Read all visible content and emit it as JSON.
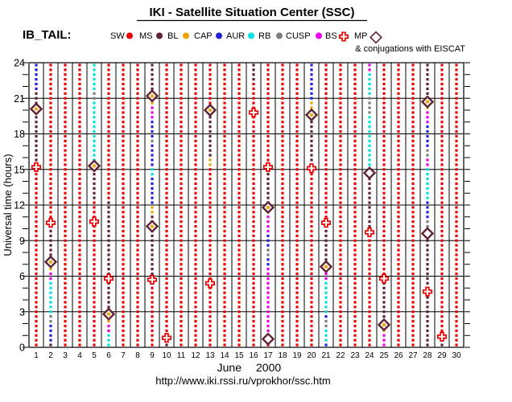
{
  "title": "IKI - Satellite Situation Center (SSC)",
  "dataset_label": "IB_TAIL:",
  "legend": {
    "note": "& conjugations with EISCAT",
    "items": [
      {
        "label": "SW",
        "marker": "dot",
        "color": "#ee0000"
      },
      {
        "label": "MS",
        "marker": "dot",
        "color": "#5f2230"
      },
      {
        "label": "BL",
        "marker": "dot",
        "color": "#f2a200"
      },
      {
        "label": "CAP",
        "marker": "dot",
        "color": "#2222dd"
      },
      {
        "label": "AUR",
        "marker": "dot",
        "color": "#00e2e2"
      },
      {
        "label": "RB",
        "marker": "dot",
        "color": "#7d7d7d"
      },
      {
        "label": "CUSP",
        "marker": "dot",
        "color": "#ee00ee"
      },
      {
        "label": "BS",
        "marker": "cross",
        "color": "#ee0000"
      },
      {
        "label": "MP",
        "marker": "diamond",
        "color": "#5f2230"
      }
    ]
  },
  "footer": {
    "url": "http://www.iki.rssi.ru/vprokhor/ssc.htm"
  },
  "chart_data": {
    "type": "scatter",
    "title": "IKI - Satellite Situation Center (SSC)",
    "ylabel": "Universal time (hours)",
    "xlabel": {
      "month": "June",
      "year": "2000"
    },
    "ylim": [
      0,
      24
    ],
    "ytick_step": 3,
    "minor_tick_hours": 1,
    "x_days": 30,
    "grid": true,
    "colors": {
      "SW": "#ee0000",
      "MS": "#5f2230",
      "BL": "#f2a200",
      "CAP": "#2222dd",
      "AUR": "#00e2e2",
      "RB": "#7d7d7d",
      "CUSP": "#ee00ee",
      "BS": "#ee0000",
      "MP": "#5f2230"
    },
    "days": [
      {
        "day": 1,
        "segments": [
          [
            "CAP",
            24,
            21.7
          ],
          [
            "MS",
            21.7,
            15.3
          ],
          [
            "SW",
            15.3,
            0
          ]
        ]
      },
      {
        "day": 2,
        "segments": [
          [
            "SW",
            24,
            10.5
          ],
          [
            "MS",
            10.5,
            7.1
          ],
          [
            "BL",
            7.1,
            6.5
          ],
          [
            "CUSP",
            6.5,
            5.7
          ],
          [
            "AUR",
            5.7,
            3.0
          ],
          [
            "RB",
            3.0,
            2.1
          ],
          [
            "CAP",
            2.1,
            0.2
          ],
          [
            "MS",
            0.2,
            0
          ]
        ]
      },
      {
        "day": 3,
        "segments": [
          [
            "SW",
            24,
            0
          ]
        ]
      },
      {
        "day": 4,
        "segments": [
          [
            "SW",
            24,
            0
          ]
        ]
      },
      {
        "day": 5,
        "segments": [
          [
            "AUR",
            24,
            21.6
          ],
          [
            "RB",
            21.6,
            20.8
          ],
          [
            "AUR",
            20.8,
            15.4
          ],
          [
            "MS",
            15.4,
            12.4
          ],
          [
            "SW",
            12.4,
            0
          ]
        ]
      },
      {
        "day": 6,
        "segments": [
          [
            "SW",
            24,
            12.5
          ],
          [
            "MS",
            12.5,
            2.9
          ],
          [
            "BL",
            2.9,
            2.1
          ],
          [
            "CUSP",
            2.1,
            1.1
          ],
          [
            "AUR",
            1.1,
            0
          ]
        ]
      },
      {
        "day": 7,
        "segments": [
          [
            "SW",
            24,
            0
          ]
        ]
      },
      {
        "day": 8,
        "segments": [
          [
            "SW",
            24,
            0
          ]
        ]
      },
      {
        "day": 9,
        "segments": [
          [
            "MS",
            24,
            21.3
          ],
          [
            "BL",
            21.3,
            20.5
          ],
          [
            "CUSP",
            20.5,
            19.3
          ],
          [
            "CAP",
            19.3,
            17.6
          ],
          [
            "RB",
            17.6,
            17.0
          ],
          [
            "CAP",
            17.0,
            15.3
          ],
          [
            "AUR",
            15.3,
            14.4
          ],
          [
            "CAP",
            14.4,
            11.8
          ],
          [
            "BL",
            11.8,
            11.2
          ],
          [
            "MS",
            11.2,
            5.8
          ],
          [
            "SW",
            5.8,
            0
          ]
        ]
      },
      {
        "day": 10,
        "segments": [
          [
            "SW",
            24,
            1.1
          ],
          [
            "MS",
            1.1,
            0
          ]
        ]
      },
      {
        "day": 11,
        "segments": [
          [
            "SW",
            24,
            0
          ]
        ]
      },
      {
        "day": 12,
        "segments": [
          [
            "SW",
            24,
            0
          ]
        ]
      },
      {
        "day": 13,
        "segments": [
          [
            "SW",
            24,
            20.1
          ],
          [
            "MS",
            20.1,
            15.9
          ],
          [
            "BL",
            15.9,
            15.2
          ],
          [
            "SW",
            15.2,
            0
          ]
        ]
      },
      {
        "day": 14,
        "segments": [
          [
            "SW",
            24,
            0
          ]
        ]
      },
      {
        "day": 15,
        "segments": [
          [
            "SW",
            24,
            0
          ]
        ]
      },
      {
        "day": 16,
        "segments": [
          [
            "MS",
            24,
            22.3
          ],
          [
            "SW",
            22.3,
            0
          ]
        ]
      },
      {
        "day": 17,
        "segments": [
          [
            "SW",
            24,
            15.3
          ],
          [
            "MS",
            15.3,
            11.9
          ],
          [
            "BL",
            11.9,
            11.2
          ],
          [
            "CUSP",
            11.2,
            9.7
          ],
          [
            "CAP",
            9.7,
            8.2
          ],
          [
            "RB",
            8.2,
            7.6
          ],
          [
            "CAP",
            7.6,
            6.7
          ],
          [
            "CUSP",
            6.7,
            0.9
          ],
          [
            "SW",
            0.9,
            0
          ]
        ]
      },
      {
        "day": 18,
        "segments": [
          [
            "SW",
            24,
            0
          ]
        ]
      },
      {
        "day": 19,
        "segments": [
          [
            "SW",
            24,
            0
          ]
        ]
      },
      {
        "day": 20,
        "segments": [
          [
            "CAP",
            24,
            20.7
          ],
          [
            "BL",
            20.7,
            19.8
          ],
          [
            "MS",
            19.8,
            15.2
          ],
          [
            "SW",
            15.2,
            0
          ]
        ]
      },
      {
        "day": 21,
        "segments": [
          [
            "SW",
            24,
            10.6
          ],
          [
            "MS",
            10.6,
            6.9
          ],
          [
            "BL",
            6.9,
            6.2
          ],
          [
            "CUSP",
            6.2,
            5.4
          ],
          [
            "AUR",
            5.4,
            2.9
          ],
          [
            "CAP",
            2.9,
            2.5
          ],
          [
            "RB",
            2.5,
            1.7
          ],
          [
            "AUR",
            1.7,
            0.5
          ],
          [
            "CAP",
            0.5,
            0
          ]
        ]
      },
      {
        "day": 22,
        "segments": [
          [
            "SW",
            24,
            0
          ]
        ]
      },
      {
        "day": 23,
        "segments": [
          [
            "SW",
            24,
            0
          ]
        ]
      },
      {
        "day": 24,
        "segments": [
          [
            "CUSP",
            24,
            23.2
          ],
          [
            "AUR",
            23.2,
            21.3
          ],
          [
            "RB",
            21.3,
            19.6
          ],
          [
            "AUR",
            19.6,
            15.0
          ],
          [
            "MS",
            15.0,
            9.8
          ],
          [
            "SW",
            9.8,
            0
          ]
        ]
      },
      {
        "day": 25,
        "segments": [
          [
            "SW",
            24,
            5.9
          ],
          [
            "MS",
            5.9,
            2.0
          ],
          [
            "BL",
            2.0,
            1.3
          ],
          [
            "CUSP",
            1.3,
            0
          ]
        ]
      },
      {
        "day": 26,
        "segments": [
          [
            "SW",
            24,
            0
          ]
        ]
      },
      {
        "day": 27,
        "segments": [
          [
            "SW",
            24,
            0
          ]
        ]
      },
      {
        "day": 28,
        "segments": [
          [
            "MS",
            24,
            20.9
          ],
          [
            "BL",
            20.9,
            20.0
          ],
          [
            "CUSP",
            20.0,
            18.7
          ],
          [
            "CAP",
            18.7,
            16.8
          ],
          [
            "RB",
            16.8,
            16.0
          ],
          [
            "CUSP",
            16.0,
            15.2
          ],
          [
            "AUR",
            15.2,
            12.2
          ],
          [
            "CAP",
            12.2,
            10.7
          ],
          [
            "RB",
            10.7,
            10.1
          ],
          [
            "MS",
            10.1,
            0
          ]
        ]
      },
      {
        "day": 29,
        "segments": [
          [
            "SW",
            24,
            0.4
          ],
          [
            "MS",
            0.4,
            0
          ]
        ]
      },
      {
        "day": 30,
        "segments": [
          [
            "SW",
            24,
            0
          ]
        ]
      }
    ],
    "markers": [
      {
        "day": 1,
        "hour": 20.1,
        "type": "MP",
        "center": "BL"
      },
      {
        "day": 1,
        "hour": 15.2,
        "type": "BS"
      },
      {
        "day": 2,
        "hour": 10.5,
        "type": "BS"
      },
      {
        "day": 2,
        "hour": 7.2,
        "type": "MP",
        "center": "BL"
      },
      {
        "day": 5,
        "hour": 15.3,
        "type": "MP",
        "center": "BL"
      },
      {
        "day": 5,
        "hour": 10.6,
        "type": "BS"
      },
      {
        "day": 6,
        "hour": 5.8,
        "type": "BS"
      },
      {
        "day": 6,
        "hour": 2.8,
        "type": "MP",
        "center": "BL"
      },
      {
        "day": 9,
        "hour": 21.2,
        "type": "MP",
        "center": "BL"
      },
      {
        "day": 9,
        "hour": 10.2,
        "type": "MP",
        "center": "BL"
      },
      {
        "day": 9,
        "hour": 5.7,
        "type": "BS"
      },
      {
        "day": 10,
        "hour": 0.8,
        "type": "BS"
      },
      {
        "day": 13,
        "hour": 20.0,
        "type": "MP",
        "center": "BL"
      },
      {
        "day": 13,
        "hour": 5.4,
        "type": "BS"
      },
      {
        "day": 16,
        "hour": 19.8,
        "type": "BS"
      },
      {
        "day": 17,
        "hour": 15.2,
        "type": "BS"
      },
      {
        "day": 17,
        "hour": 11.8,
        "type": "MP",
        "center": "BL"
      },
      {
        "day": 17,
        "hour": 0.7,
        "type": "MP",
        "center": "none"
      },
      {
        "day": 20,
        "hour": 19.6,
        "type": "MP",
        "center": "BL"
      },
      {
        "day": 20,
        "hour": 15.1,
        "type": "BS"
      },
      {
        "day": 21,
        "hour": 10.5,
        "type": "BS"
      },
      {
        "day": 21,
        "hour": 6.8,
        "type": "MP",
        "center": "BL"
      },
      {
        "day": 24,
        "hour": 14.7,
        "type": "MP",
        "center": "none"
      },
      {
        "day": 24,
        "hour": 9.7,
        "type": "BS"
      },
      {
        "day": 25,
        "hour": 5.8,
        "type": "BS"
      },
      {
        "day": 25,
        "hour": 1.9,
        "type": "MP",
        "center": "BL"
      },
      {
        "day": 28,
        "hour": 20.7,
        "type": "MP",
        "center": "BL"
      },
      {
        "day": 28,
        "hour": 9.6,
        "type": "MP",
        "center": "none"
      },
      {
        "day": 28,
        "hour": 4.7,
        "type": "BS"
      },
      {
        "day": 29,
        "hour": 0.9,
        "type": "BS"
      }
    ]
  }
}
